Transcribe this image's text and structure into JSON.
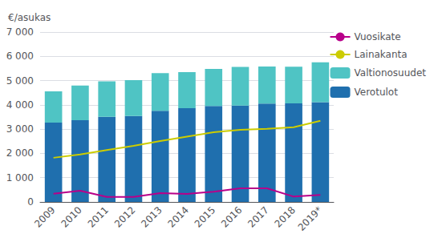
{
  "chart_data": {
    "type": "bar",
    "stacked": true,
    "ylabel": "€/asukas",
    "categories": [
      "2009",
      "2010",
      "2011",
      "2012",
      "2013",
      "2014",
      "2015",
      "2016",
      "2017",
      "2018",
      "2019*"
    ],
    "series": [
      {
        "name": "Verotulot",
        "type": "bar",
        "color": "#1F6FAE",
        "values": [
          3270,
          3370,
          3510,
          3540,
          3760,
          3860,
          3950,
          3970,
          4050,
          4060,
          4110
        ]
      },
      {
        "name": "Valtionosuudet",
        "type": "bar",
        "color": "#4FC4C4",
        "values": [
          1290,
          1430,
          1460,
          1480,
          1550,
          1490,
          1530,
          1590,
          1530,
          1510,
          1640
        ]
      },
      {
        "name": "Lainakanta",
        "type": "line",
        "color": "#CCCC00",
        "values": [
          1820,
          1960,
          2140,
          2310,
          2510,
          2690,
          2870,
          2970,
          3010,
          3080,
          3340
        ]
      },
      {
        "name": "Vuosikate",
        "type": "line",
        "color": "#B8008A",
        "values": [
          340,
          460,
          205,
          205,
          360,
          330,
          420,
          560,
          560,
          220,
          290
        ]
      }
    ],
    "ylim": [
      0,
      7000
    ],
    "yticks": [
      0,
      {
        "value": 1000,
        "label": "1 000"
      },
      {
        "value": 2000,
        "label": "2 000"
      },
      {
        "value": 3000,
        "label": "3 000"
      },
      {
        "value": 4000,
        "label": "4 000"
      },
      {
        "value": 5000,
        "label": "5 000"
      },
      {
        "value": 6000,
        "label": "6 000"
      },
      {
        "value": 7000,
        "label": "7 000"
      }
    ],
    "grid": true,
    "legend": "right"
  }
}
